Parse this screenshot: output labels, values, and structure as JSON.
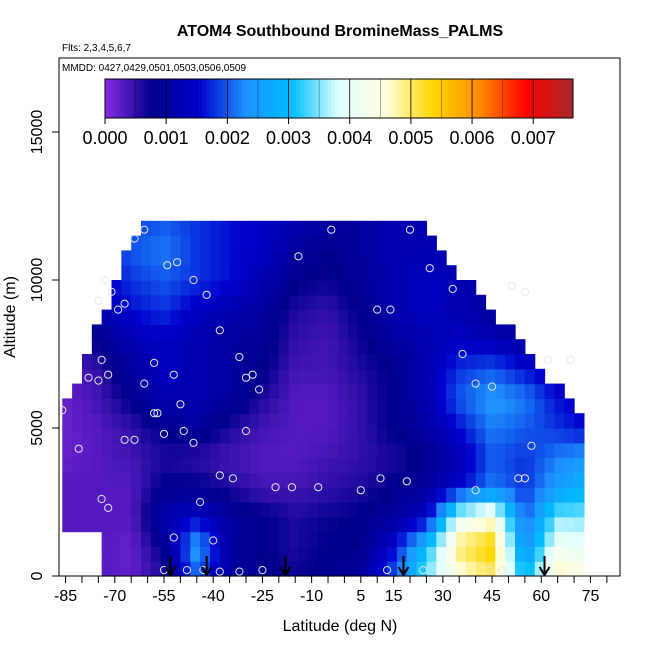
{
  "chart_data": {
    "type": "heatmap",
    "title": "ATOM4 Southbound BromineMass_PALMS",
    "subtitle_flights": "Flts: 2,3,4,5,6,7",
    "subtitle_dates": "MMDD: 0427,0429,0501,0503,0506,0509",
    "xlabel": "Latitude (deg N)",
    "ylabel": "Altitude (m)",
    "xlim": [
      -87,
      84
    ],
    "ylim": [
      0,
      17500
    ],
    "x_ticks": [
      "-85",
      "-70",
      "-55",
      "-40",
      "-25",
      "-10",
      "5",
      "15",
      "30",
      "45",
      "60",
      "75"
    ],
    "y_ticks": [
      "0",
      "5000",
      "10000",
      "15000"
    ],
    "colorbar": {
      "ticks": [
        "0.000",
        "0.001",
        "0.002",
        "0.003",
        "0.004",
        "0.005",
        "0.006",
        "0.007"
      ],
      "range": [
        0,
        0.00765
      ],
      "colors": [
        "#8a2be2",
        "#00008b",
        "#0000cd",
        "#1e90ff",
        "#00bfff",
        "#e0ffff",
        "#ffffe0",
        "#ffd700",
        "#ff8c00",
        "#ff0000",
        "#a52a2a"
      ]
    },
    "field": {
      "lat_bins": [
        -85,
        -75,
        -65,
        -55,
        -45,
        -35,
        -25,
        -15,
        -5,
        5,
        15,
        25,
        35,
        45,
        55,
        65,
        72
      ],
      "alt_bins": [
        0,
        1000,
        2000,
        3000,
        4000,
        5000,
        6000,
        7000,
        8000,
        9000,
        10000,
        11000,
        12000
      ],
      "values": [
        [
          0.0004,
          0.0003,
          0.0002,
          0.0006,
          0.002,
          0.001,
          0.0008,
          0.0007,
          0.0008,
          0.001,
          0.002,
          0.0035,
          0.0045,
          0.005,
          0.003,
          0.0048,
          0.0046
        ],
        [
          0.0003,
          0.0003,
          0.0002,
          0.0008,
          0.0025,
          0.001,
          0.0008,
          0.0006,
          0.0008,
          0.0008,
          0.0015,
          0.003,
          0.005,
          0.0055,
          0.0022,
          0.0042,
          0.004
        ],
        [
          0.0003,
          0.0003,
          0.0003,
          0.0012,
          0.0015,
          0.001,
          0.0008,
          0.0006,
          0.0007,
          0.0008,
          0.001,
          0.0014,
          0.004,
          0.0045,
          0.002,
          0.0035,
          0.0035
        ],
        [
          0.0003,
          0.0003,
          0.0003,
          0.0008,
          0.0008,
          0.0006,
          0.0004,
          0.0004,
          0.0005,
          0.0006,
          0.0008,
          0.001,
          0.0015,
          0.0022,
          0.0018,
          0.0025,
          0.0028
        ],
        [
          0.0002,
          0.0003,
          0.0004,
          0.0006,
          0.0005,
          0.0004,
          0.0003,
          0.0003,
          0.0004,
          0.0005,
          0.0006,
          0.0008,
          0.0012,
          0.002,
          0.0018,
          0.0022,
          0.0024
        ],
        [
          0.0002,
          0.0003,
          0.0005,
          0.0008,
          0.001,
          0.0006,
          0.0004,
          0.0003,
          0.0003,
          0.0005,
          0.0008,
          0.001,
          0.0016,
          0.0022,
          0.002,
          0.0018,
          0.0016
        ],
        [
          0.0002,
          0.0004,
          0.0008,
          0.0012,
          0.0012,
          0.001,
          0.0006,
          0.0003,
          0.0003,
          0.0005,
          0.0008,
          0.0012,
          0.002,
          0.0024,
          0.0022,
          0.0016,
          0.0014
        ],
        [
          0.0003,
          0.0005,
          0.001,
          0.0014,
          0.0012,
          0.001,
          0.0008,
          0.0004,
          0.0004,
          0.0006,
          0.0008,
          0.0012,
          0.0018,
          0.002,
          0.0016,
          0.0012,
          0.001
        ],
        [
          0.0004,
          0.0008,
          0.0012,
          0.0014,
          0.0012,
          0.001,
          0.0009,
          0.0005,
          0.0004,
          0.0007,
          0.001,
          0.0012,
          0.0014,
          0.0012,
          0.001,
          0.0009,
          0.0008
        ],
        [
          0.0006,
          0.0012,
          0.0016,
          0.0018,
          0.0014,
          0.0012,
          0.001,
          0.0006,
          0.0005,
          0.0008,
          0.0012,
          0.0014,
          0.0012,
          0.001,
          0.0009,
          0.0008,
          0.0008
        ],
        [
          0.0008,
          0.0014,
          0.0018,
          0.002,
          0.0018,
          0.0016,
          0.0012,
          0.0008,
          0.0007,
          0.0009,
          0.0012,
          0.0014,
          0.0012,
          0.001,
          0.0009,
          0.0009,
          0.0008
        ],
        [
          0.001,
          0.0016,
          0.002,
          0.0022,
          0.0018,
          0.0016,
          0.0014,
          0.001,
          0.0008,
          0.001,
          0.0012,
          0.0012,
          0.0012,
          0.0011,
          0.001,
          0.001,
          0.001
        ],
        [
          0.0012,
          0.0016,
          0.0018,
          0.002,
          0.0018,
          0.0016,
          0.0014,
          0.0012,
          0.001,
          0.001,
          0.0012,
          0.0012,
          0.0012,
          0.0011,
          0.001,
          0.001,
          0.001
        ]
      ]
    },
    "sample_points": [
      [
        -86,
        5600
      ],
      [
        -81,
        4300
      ],
      [
        -78,
        6700
      ],
      [
        -75,
        6600
      ],
      [
        -74,
        7300
      ],
      [
        -72,
        6800
      ],
      [
        -74,
        2600
      ],
      [
        -72,
        2300
      ],
      [
        -67,
        4600
      ],
      [
        -64,
        4600
      ],
      [
        -61,
        6500
      ],
      [
        -58,
        7200
      ],
      [
        -58,
        5500
      ],
      [
        -57,
        5500
      ],
      [
        -55,
        4800
      ],
      [
        -52,
        6800
      ],
      [
        -50,
        5800
      ],
      [
        -49,
        4900
      ],
      [
        -46,
        4500
      ],
      [
        -44,
        2500
      ],
      [
        -40,
        1200
      ],
      [
        -75,
        9300
      ],
      [
        -73,
        10000
      ],
      [
        -71,
        9600
      ],
      [
        -69,
        9000
      ],
      [
        -67,
        9200
      ],
      [
        -64,
        11400
      ],
      [
        -61,
        11700
      ],
      [
        -54,
        10500
      ],
      [
        -51,
        10600
      ],
      [
        -46,
        10000
      ],
      [
        -42,
        9500
      ],
      [
        -38,
        8300
      ],
      [
        -32,
        7400
      ],
      [
        -30,
        6700
      ],
      [
        -28,
        6800
      ],
      [
        -26,
        6300
      ],
      [
        -14,
        10800
      ],
      [
        -4,
        11700
      ],
      [
        10,
        9000
      ],
      [
        14,
        9000
      ],
      [
        20,
        11700
      ],
      [
        26,
        10400
      ],
      [
        33,
        9700
      ],
      [
        36,
        7500
      ],
      [
        40,
        6500
      ],
      [
        45,
        6400
      ],
      [
        51,
        9800
      ],
      [
        55,
        9600
      ],
      [
        62,
        7300
      ],
      [
        69,
        7300
      ],
      [
        -30,
        4900
      ],
      [
        -38,
        3400
      ],
      [
        -34,
        3300
      ],
      [
        -21,
        3000
      ],
      [
        -16,
        3000
      ],
      [
        -8,
        3000
      ],
      [
        5,
        2900
      ],
      [
        11,
        3300
      ],
      [
        19,
        3200
      ],
      [
        40,
        2900
      ],
      [
        53,
        3300
      ],
      [
        55,
        3300
      ],
      [
        57,
        4400
      ],
      [
        -55,
        200
      ],
      [
        -48,
        200
      ],
      [
        -43,
        200
      ],
      [
        -38,
        150
      ],
      [
        -32,
        150
      ],
      [
        -25,
        200
      ],
      [
        13,
        200
      ],
      [
        24,
        200
      ],
      [
        44,
        200
      ],
      [
        48,
        200
      ],
      [
        -52,
        1300
      ]
    ],
    "arrows_x": [
      -53,
      -42,
      -18,
      18,
      61
    ]
  }
}
